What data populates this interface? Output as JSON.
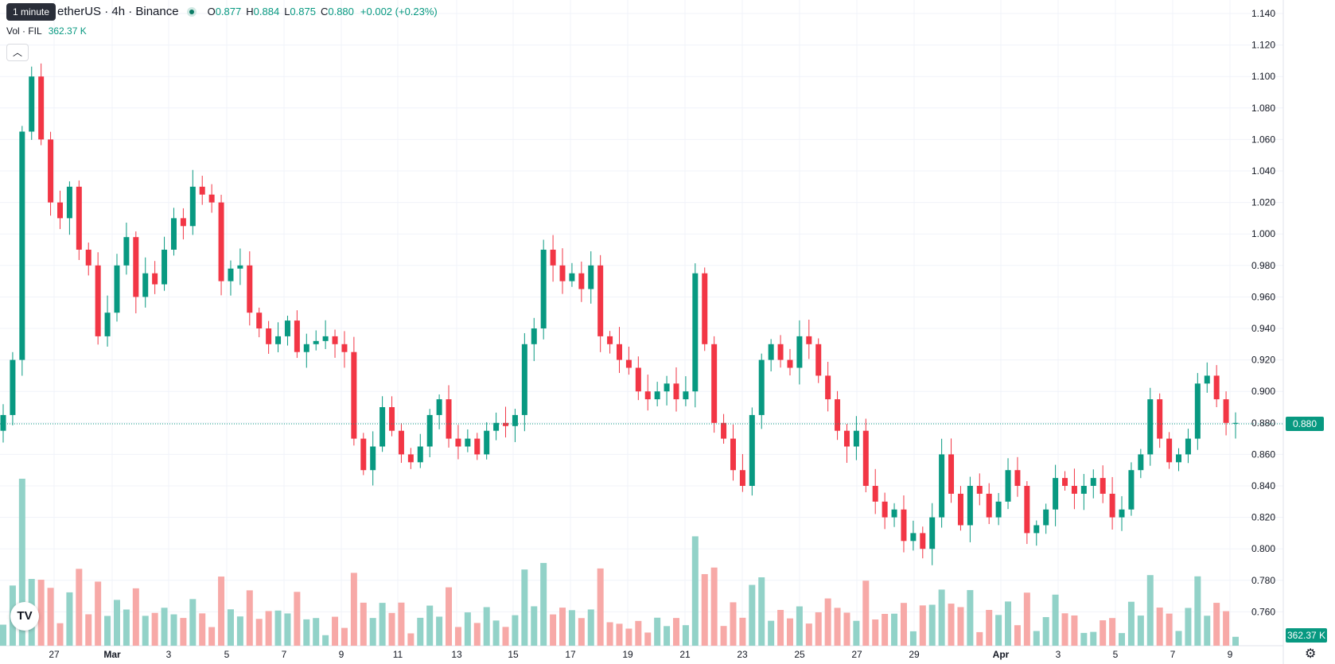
{
  "header": {
    "symbol": "etherUS · 4h · Binance",
    "tooltip": "1 minute",
    "ohlc": {
      "o_label": "O",
      "o": "0.877",
      "h_label": "H",
      "h": "0.884",
      "l_label": "L",
      "l": "0.875",
      "c_label": "C",
      "c": "0.880"
    },
    "change": "+0.002 (+0.23%)",
    "volume_label": "Vol · FIL",
    "volume_value": "362.37 K",
    "collapse_icon": "chevron-up-icon"
  },
  "price_axis": {
    "ticks": [
      "1.140",
      "1.120",
      "1.100",
      "1.080",
      "1.060",
      "1.040",
      "1.020",
      "1.000",
      "0.980",
      "0.960",
      "0.940",
      "0.920",
      "0.900",
      "0.880",
      "0.860",
      "0.840",
      "0.820",
      "0.800",
      "0.780",
      "0.760"
    ],
    "last_price": "0.880",
    "last_volume": "362.37 K"
  },
  "colors": {
    "up": "#089981",
    "down": "#f23645",
    "up_vol": "#92d2c8",
    "down_vol": "#f7a9a7",
    "grid": "#f0f3fa"
  },
  "chart_data": {
    "type": "candlestick",
    "ylim": [
      0.75,
      1.145
    ],
    "x_tick_labels": [
      "27",
      "Mar",
      "3",
      "5",
      "7",
      "9",
      "11",
      "13",
      "15",
      "17",
      "19",
      "21",
      "23",
      "25",
      "27",
      "29",
      "Apr",
      "3",
      "5",
      "7",
      "9"
    ],
    "close_series": [
      0.885,
      0.92,
      1.065,
      1.1,
      1.06,
      1.02,
      1.01,
      1.03,
      0.99,
      0.98,
      0.935,
      0.95,
      0.98,
      0.998,
      0.96,
      0.975,
      0.968,
      0.99,
      1.01,
      1.005,
      1.03,
      1.025,
      1.02,
      0.97,
      0.978,
      0.98,
      0.95,
      0.94,
      0.93,
      0.935,
      0.945,
      0.925,
      0.93,
      0.932,
      0.935,
      0.93,
      0.925,
      0.87,
      0.85,
      0.865,
      0.89,
      0.875,
      0.86,
      0.855,
      0.865,
      0.885,
      0.895,
      0.87,
      0.865,
      0.87,
      0.86,
      0.875,
      0.88,
      0.878,
      0.885,
      0.93,
      0.94,
      0.99,
      0.98,
      0.97,
      0.975,
      0.965,
      0.98,
      0.935,
      0.93,
      0.92,
      0.915,
      0.9,
      0.895,
      0.9,
      0.905,
      0.895,
      0.9,
      0.975,
      0.93,
      0.88,
      0.87,
      0.85,
      0.84,
      0.885,
      0.92,
      0.93,
      0.92,
      0.915,
      0.935,
      0.93,
      0.91,
      0.895,
      0.875,
      0.865,
      0.875,
      0.84,
      0.83,
      0.82,
      0.825,
      0.805,
      0.81,
      0.8,
      0.82,
      0.86,
      0.835,
      0.815,
      0.84,
      0.835,
      0.82,
      0.83,
      0.85,
      0.84,
      0.81,
      0.815,
      0.825,
      0.845,
      0.84,
      0.835,
      0.84,
      0.845,
      0.835,
      0.82,
      0.825,
      0.85,
      0.86,
      0.895,
      0.87,
      0.855,
      0.86,
      0.87,
      0.905,
      0.91,
      0.895,
      0.88,
      0.88
    ]
  }
}
